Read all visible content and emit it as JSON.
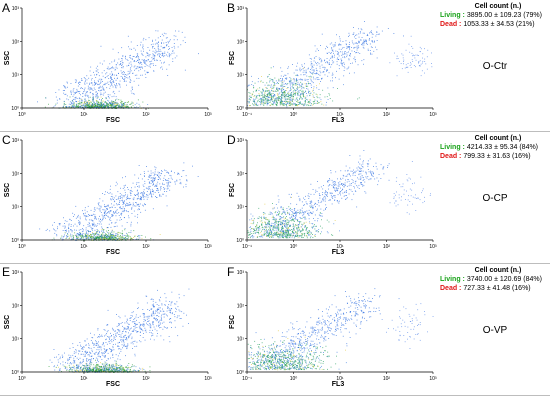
{
  "rows": [
    {
      "panels": [
        {
          "letter": "A",
          "type": "fsc_ssc",
          "xlabel": "FSC",
          "ylabel": "SSC"
        },
        {
          "letter": "B",
          "type": "fl3_fsc",
          "xlabel": "FL3",
          "ylabel": "FSC"
        }
      ],
      "cell_count": {
        "title": "Cell count (n.)",
        "living_label": "Living :",
        "living_value": "3895.00 ± 109.23 (79%)",
        "dead_label": "Dead :",
        "dead_value": "1053.33 ± 34.53 (21%)"
      },
      "group_label": "O-Ctr"
    },
    {
      "panels": [
        {
          "letter": "C",
          "type": "fsc_ssc",
          "xlabel": "FSC",
          "ylabel": "SSC"
        },
        {
          "letter": "D",
          "type": "fl3_fsc",
          "xlabel": "FL3",
          "ylabel": "FSC"
        }
      ],
      "cell_count": {
        "title": "Cell count (n.)",
        "living_label": "Living :",
        "living_value": "4214.33 ± 95.34 (84%)",
        "dead_label": "Dead :",
        "dead_value": "799.33 ± 31.63 (16%)"
      },
      "group_label": "O-CP"
    },
    {
      "panels": [
        {
          "letter": "E",
          "type": "fsc_ssc",
          "xlabel": "FSC",
          "ylabel": "SSC"
        },
        {
          "letter": "F",
          "type": "fl3_fsc",
          "xlabel": "FL3",
          "ylabel": "FSC"
        }
      ],
      "cell_count": {
        "title": "Cell count (n.)",
        "living_label": "Living :",
        "living_value": "3740.00 ± 120.69 (84%)",
        "dead_label": "Dead :",
        "dead_value": "727.33 ± 41.48 (16%)"
      },
      "group_label": "O-VP"
    }
  ],
  "chart_data": [
    {
      "type": "scatter",
      "panel": "A",
      "xlabel": "FSC",
      "ylabel": "SSC",
      "log_scale": true,
      "xticks": [
        "10⁰",
        "10¹",
        "10²",
        "10³"
      ],
      "yticks": [
        "10⁰",
        "10¹",
        "10²",
        "10³"
      ],
      "xlim": [
        1,
        1000
      ],
      "ylim": [
        1,
        1000
      ],
      "clusters": [
        {
          "name": "",
          "center": [
            18,
            1.3
          ],
          "count": 650,
          "color": "#2a9d3a"
        },
        {
          "name": "",
          "center": [
            150,
            60
          ],
          "count": 700,
          "color": "#2f6fe0"
        }
      ]
    },
    {
      "type": "scatter",
      "panel": "B",
      "xlabel": "FL3",
      "ylabel": "FSC",
      "log_scale": true,
      "xticks": [
        "10⁻¹",
        "10⁰",
        "10¹",
        "10²",
        "10³"
      ],
      "yticks": [
        "10⁰",
        "10¹",
        "10²",
        "10³"
      ],
      "xlim": [
        0.1,
        1000
      ],
      "ylim": [
        1,
        1000
      ],
      "clusters": [
        {
          "name": "",
          "center": [
            0.5,
            3.0
          ],
          "count": 750,
          "color": "#1e9c5a"
        },
        {
          "name": "",
          "center": [
            30,
            150
          ],
          "count": 500,
          "color": "#2f6fe0"
        },
        {
          "name": "",
          "center": [
            400,
            30
          ],
          "count": 80,
          "color": "#5a8ae8"
        }
      ]
    },
    {
      "type": "scatter",
      "panel": "C",
      "xlabel": "FSC",
      "ylabel": "SSC",
      "log_scale": true,
      "xticks": [
        "10⁰",
        "10¹",
        "10²",
        "10³"
      ],
      "yticks": [
        "10⁰",
        "10¹",
        "10²",
        "10³"
      ],
      "xlim": [
        1,
        1000
      ],
      "ylim": [
        1,
        1000
      ],
      "clusters": [
        {
          "name": "",
          "center": [
            20,
            1.4
          ],
          "count": 550,
          "color": "#2a9d3a"
        },
        {
          "name": "",
          "center": [
            160,
            70
          ],
          "count": 750,
          "color": "#2f6fe0"
        }
      ]
    },
    {
      "type": "scatter",
      "panel": "D",
      "xlabel": "FL3",
      "ylabel": "FSC",
      "log_scale": true,
      "xticks": [
        "10⁻¹",
        "10⁰",
        "10¹",
        "10²",
        "10³"
      ],
      "yticks": [
        "10⁰",
        "10¹",
        "10²",
        "10³"
      ],
      "xlim": [
        0.1,
        1000
      ],
      "ylim": [
        1,
        1000
      ],
      "clusters": [
        {
          "name": "",
          "center": [
            0.5,
            2.5
          ],
          "count": 700,
          "color": "#1e9c5a"
        },
        {
          "name": "",
          "center": [
            25,
            130
          ],
          "count": 500,
          "color": "#2f6fe0"
        },
        {
          "name": "",
          "center": [
            300,
            25
          ],
          "count": 60,
          "color": "#5a8ae8"
        }
      ]
    },
    {
      "type": "scatter",
      "panel": "E",
      "xlabel": "FSC",
      "ylabel": "SSC",
      "log_scale": true,
      "xticks": [
        "10⁰",
        "10¹",
        "10²",
        "10³"
      ],
      "yticks": [
        "10⁰",
        "10¹",
        "10²",
        "10³"
      ],
      "xlim": [
        1,
        1000
      ],
      "ylim": [
        1,
        1000
      ],
      "clusters": [
        {
          "name": "",
          "center": [
            20,
            1.4
          ],
          "count": 600,
          "color": "#2a9d3a"
        },
        {
          "name": "",
          "center": [
            170,
            80
          ],
          "count": 750,
          "color": "#2f6fe0"
        }
      ]
    },
    {
      "type": "scatter",
      "panel": "F",
      "xlabel": "FL3",
      "ylabel": "FSC",
      "log_scale": true,
      "xticks": [
        "10⁻¹",
        "10⁰",
        "10¹",
        "10²",
        "10³"
      ],
      "yticks": [
        "10⁰",
        "10¹",
        "10²",
        "10³"
      ],
      "xlim": [
        0.1,
        1000
      ],
      "ylim": [
        1,
        1000
      ],
      "clusters": [
        {
          "name": "",
          "center": [
            0.5,
            2.5
          ],
          "count": 750,
          "color": "#1e9c5a"
        },
        {
          "name": "",
          "center": [
            25,
            140
          ],
          "count": 450,
          "color": "#2f6fe0"
        },
        {
          "name": "",
          "center": [
            300,
            25
          ],
          "count": 60,
          "color": "#5a8ae8"
        }
      ]
    }
  ]
}
